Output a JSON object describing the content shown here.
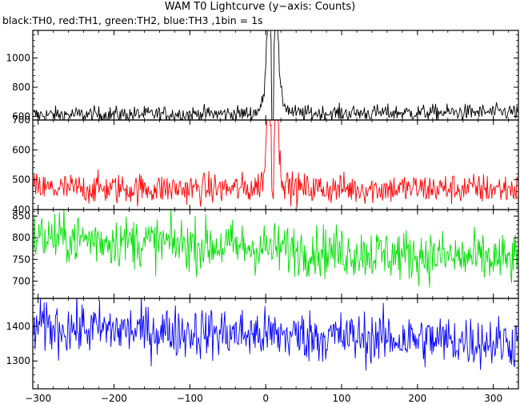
{
  "title": "WAM T0 Lightcurve (y−axis: Counts)",
  "subtitle": "black:TH0, red:TH1, green:TH2, blue:TH3 ,1bin = 1s",
  "chart_data": [
    {
      "type": "line",
      "series": [
        {
          "name": "TH0",
          "color": "#000000"
        }
      ],
      "ylim": [
        575,
        1190
      ],
      "yticks": [
        600,
        800,
        1000
      ],
      "baseline": 620,
      "peak": 1190,
      "noise": 28,
      "trend": 20
    },
    {
      "type": "line",
      "series": [
        {
          "name": "TH1",
          "color": "#ff0000"
        }
      ],
      "ylim": [
        400,
        700
      ],
      "yticks": [
        400,
        500,
        600,
        700
      ],
      "baseline": 470,
      "peak": 700,
      "noise": 26,
      "trend": 0
    },
    {
      "type": "line",
      "series": [
        {
          "name": "TH2",
          "color": "#00e000"
        }
      ],
      "ylim": [
        660,
        865
      ],
      "yticks": [
        700,
        750,
        800,
        850
      ],
      "baseline": 775,
      "peak": 0,
      "noise": 30,
      "trend": -55
    },
    {
      "type": "line",
      "series": [
        {
          "name": "TH3",
          "color": "#0000ff"
        }
      ],
      "ylim": [
        1220,
        1480
      ],
      "yticks": [
        1300,
        1400
      ],
      "baseline": 1375,
      "peak": 0,
      "noise": 38,
      "trend": -45
    }
  ],
  "x_axis": {
    "xlim": [
      -307,
      333
    ],
    "ticks": [
      -300,
      -200,
      -100,
      0,
      100,
      200,
      300
    ],
    "tick_labels": [
      "−300",
      "−200",
      "−100",
      "0",
      "100",
      "200",
      "300"
    ]
  }
}
